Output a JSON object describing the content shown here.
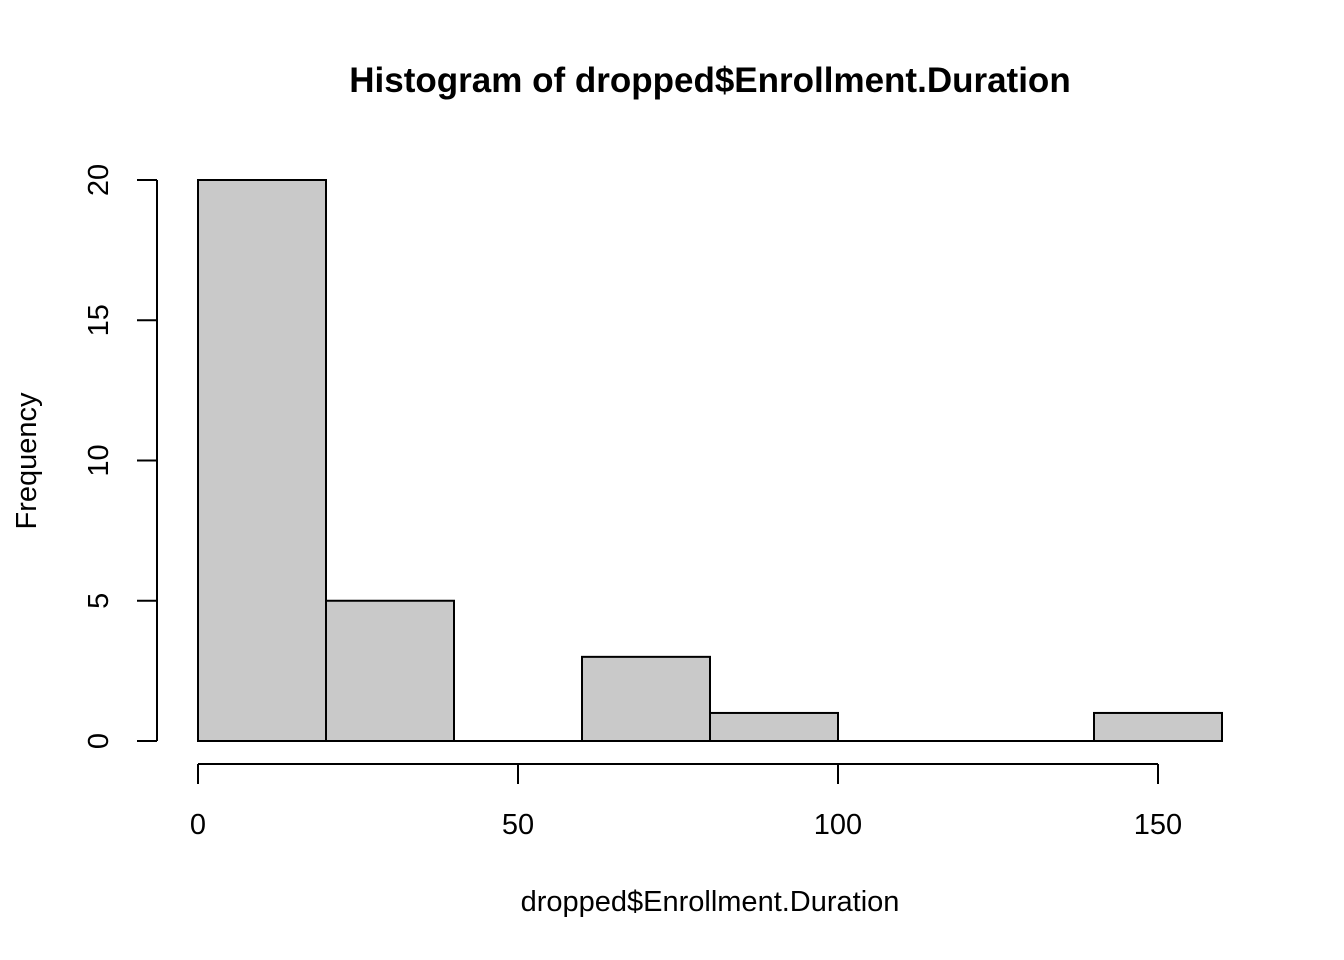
{
  "chart_data": {
    "type": "bar",
    "title": "Histogram of dropped$Enrollment.Duration",
    "xlabel": "dropped$Enrollment.Duration",
    "ylabel": "Frequency",
    "bins": [
      {
        "start": 0,
        "end": 20,
        "count": 20
      },
      {
        "start": 20,
        "end": 40,
        "count": 5
      },
      {
        "start": 40,
        "end": 60,
        "count": 0
      },
      {
        "start": 60,
        "end": 80,
        "count": 3
      },
      {
        "start": 80,
        "end": 100,
        "count": 1
      },
      {
        "start": 100,
        "end": 120,
        "count": 0
      },
      {
        "start": 120,
        "end": 140,
        "count": 0
      },
      {
        "start": 140,
        "end": 160,
        "count": 1
      }
    ],
    "x_ticks": [
      0,
      50,
      100,
      150
    ],
    "x_tick_labels": [
      "0",
      "50",
      "100",
      "150"
    ],
    "y_ticks": [
      0,
      5,
      10,
      15,
      20
    ],
    "y_tick_labels": [
      "0",
      "5",
      "10",
      "15",
      "20"
    ],
    "xlim": [
      0,
      160
    ],
    "ylim": [
      0,
      20
    ],
    "grid": false,
    "bar_fill": "#c9c9c9",
    "bar_stroke": "#000000"
  }
}
